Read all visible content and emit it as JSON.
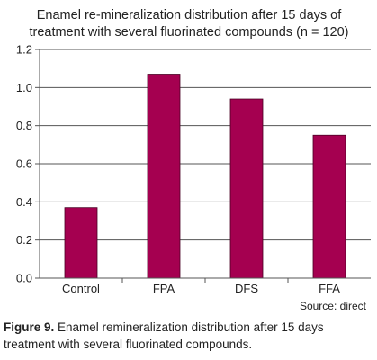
{
  "chart_data": {
    "type": "bar",
    "title_lines": [
      "Enamel re-mineralization distribution after 15 days of",
      "treatment with several fluorinated compounds (n = 120)"
    ],
    "categories": [
      "Control",
      "FPA",
      "DFS",
      "FFA"
    ],
    "values": [
      0.37,
      1.07,
      0.94,
      0.75
    ],
    "xlabel": "",
    "ylabel": "",
    "ylim": [
      0,
      1.2
    ],
    "yticks": [
      "0.0",
      "0.2",
      "0.4",
      "0.6",
      "0.8",
      "1.0",
      "1.2"
    ],
    "grid": true,
    "bar_color": "#A50050"
  },
  "source": "Source: direct",
  "caption": {
    "label": "Figure 9.",
    "text": " Enamel remineralization distribution after 15 days treatment with several fluorinated compounds."
  }
}
